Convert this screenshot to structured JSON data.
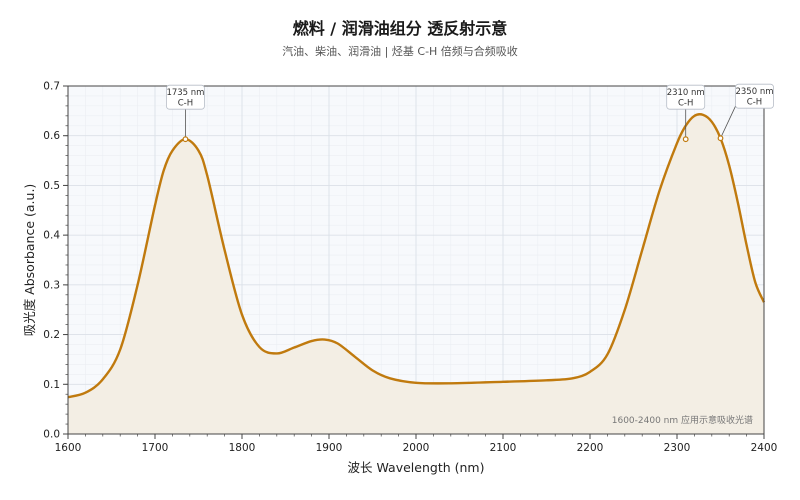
{
  "header": {
    "title": "燃料 / 润滑油组分  透反射示意",
    "subtitle": "汽油、柴油、润滑油 | 烃基 C-H 倍频与合频吸收"
  },
  "colors": {
    "line": "#C07A0E",
    "fill": "#F3EEE4",
    "plot_bg": "#F7F9FC",
    "grid_major": "#DCE1E8",
    "grid_minor": "#EBEEF3",
    "axis": "#444444"
  },
  "chart_data": {
    "type": "area",
    "title": "燃料 / 润滑油组分  透反射示意",
    "subtitle": "汽油、柴油、润滑油 | 烃基 C-H 倍频与合频吸收",
    "xlabel": "波长 Wavelength (nm)",
    "ylabel": "吸光度 Absorbance (a.u.)",
    "xlim": [
      1600,
      2400
    ],
    "ylim": [
      0,
      0.7
    ],
    "xticks": [
      1600,
      1700,
      1800,
      1900,
      2000,
      2100,
      2200,
      2300,
      2400
    ],
    "yticks": [
      0.0,
      0.1,
      0.2,
      0.3,
      0.4,
      0.5,
      0.6,
      0.7
    ],
    "grid": true,
    "x": [
      1600,
      1620,
      1640,
      1660,
      1680,
      1700,
      1710,
      1720,
      1735,
      1750,
      1760,
      1780,
      1800,
      1820,
      1840,
      1860,
      1880,
      1895,
      1910,
      1930,
      1950,
      1970,
      2000,
      2040,
      2100,
      2150,
      2180,
      2200,
      2220,
      2240,
      2260,
      2280,
      2300,
      2310,
      2320,
      2330,
      2340,
      2350,
      2360,
      2370,
      2380,
      2390,
      2400
    ],
    "y": [
      0.074,
      0.083,
      0.11,
      0.17,
      0.3,
      0.46,
      0.53,
      0.57,
      0.593,
      0.57,
      0.52,
      0.37,
      0.24,
      0.175,
      0.162,
      0.174,
      0.187,
      0.19,
      0.182,
      0.155,
      0.128,
      0.112,
      0.103,
      0.102,
      0.105,
      0.108,
      0.112,
      0.125,
      0.16,
      0.25,
      0.37,
      0.49,
      0.585,
      0.62,
      0.64,
      0.642,
      0.628,
      0.595,
      0.54,
      0.465,
      0.38,
      0.305,
      0.265
    ],
    "annotations": [
      {
        "x": 1735,
        "y": 0.593,
        "lines": [
          "1735 nm",
          "C-H"
        ],
        "placement": "above"
      },
      {
        "x": 2310,
        "y": 0.593,
        "lines": [
          "2310 nm",
          "C-H"
        ],
        "placement": "above"
      },
      {
        "x": 2350,
        "y": 0.595,
        "lines": [
          "2350 nm",
          "C-H"
        ],
        "placement": "upper-right"
      }
    ],
    "note": "1600-2400 nm 应用示意吸收光谱"
  }
}
